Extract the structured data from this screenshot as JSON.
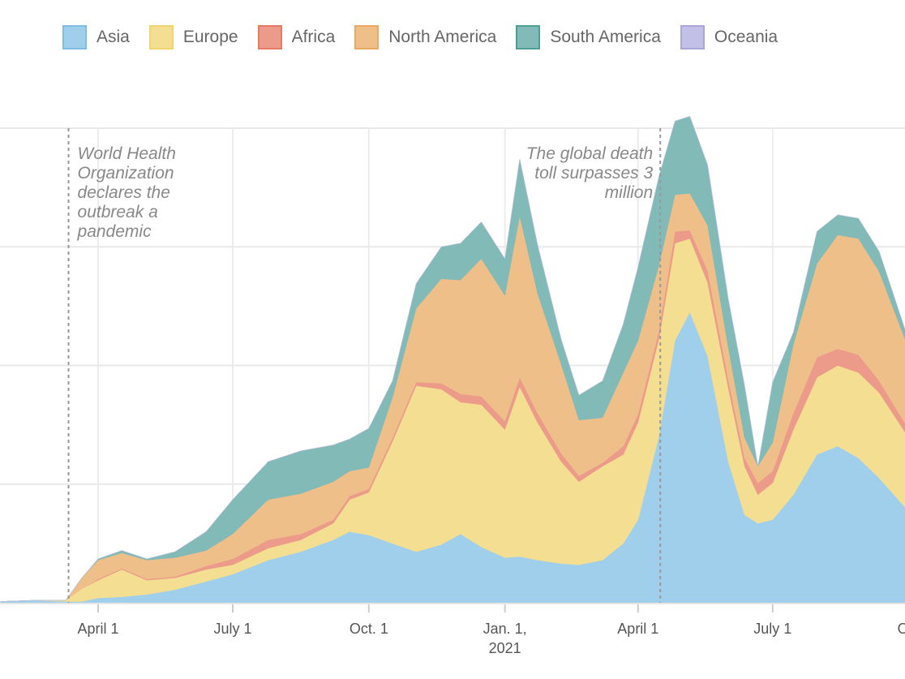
{
  "chart_data": {
    "type": "area",
    "stacked": true,
    "title": "",
    "xlabel": "",
    "ylabel": "",
    "y_units_note": "values in gridline intervals (y-axis labels not visible)",
    "ylim": [
      0,
      4
    ],
    "grid": true,
    "legend_position": "top",
    "x_ticks": [
      {
        "label": "April 1",
        "sub": "",
        "day": 91
      },
      {
        "label": "July 1",
        "sub": "",
        "day": 182
      },
      {
        "label": "Oct. 1",
        "sub": "",
        "day": 274
      },
      {
        "label": "Jan. 1,",
        "sub": "2021",
        "day": 366
      },
      {
        "label": "April 1",
        "sub": "",
        "day": 456
      },
      {
        "label": "July 1",
        "sub": "",
        "day": 547
      },
      {
        "label": "Oct",
        "sub": "",
        "day": 639
      }
    ],
    "x_day_range": [
      25,
      639
    ],
    "x_days": [
      25,
      47,
      69,
      80,
      91,
      107,
      124,
      143,
      164,
      182,
      206,
      228,
      250,
      261,
      274,
      290,
      306,
      323,
      336,
      350,
      366,
      376,
      388,
      404,
      416,
      432,
      446,
      456,
      470,
      481,
      491,
      503,
      517,
      528,
      537,
      547,
      561,
      577,
      591,
      605,
      619,
      639
    ],
    "series": [
      {
        "name": "Asia",
        "color": "#a0cfec",
        "stroke": "#7fbde3",
        "values": [
          0.01,
          0.02,
          0.01,
          0.01,
          0.04,
          0.05,
          0.07,
          0.11,
          0.18,
          0.24,
          0.36,
          0.43,
          0.53,
          0.6,
          0.57,
          0.5,
          0.43,
          0.49,
          0.58,
          0.47,
          0.38,
          0.39,
          0.36,
          0.33,
          0.32,
          0.36,
          0.5,
          0.7,
          1.4,
          2.21,
          2.45,
          2.08,
          1.19,
          0.74,
          0.67,
          0.7,
          0.91,
          1.25,
          1.32,
          1.22,
          1.05,
          0.77
        ]
      },
      {
        "name": "Europe",
        "color": "#f4de91",
        "stroke": "#f0d56f",
        "values": [
          0,
          0,
          0.01,
          0.11,
          0.15,
          0.23,
          0.12,
          0.1,
          0.1,
          0.08,
          0.1,
          0.1,
          0.14,
          0.27,
          0.36,
          0.86,
          1.4,
          1.31,
          1.11,
          1.2,
          1.08,
          1.43,
          1.16,
          0.86,
          0.7,
          0.79,
          0.75,
          0.82,
          0.82,
          0.82,
          0.62,
          0.62,
          0.62,
          0.41,
          0.24,
          0.31,
          0.55,
          0.65,
          0.68,
          0.72,
          0.72,
          0.62
        ]
      },
      {
        "name": "Africa",
        "color": "#ec9a8a",
        "stroke": "#e57b67",
        "values": [
          0,
          0,
          0,
          0,
          0.01,
          0.01,
          0.01,
          0.01,
          0.03,
          0.05,
          0.07,
          0.05,
          0.03,
          0.03,
          0.03,
          0.03,
          0.03,
          0.05,
          0.07,
          0.07,
          0.07,
          0.08,
          0.08,
          0.07,
          0.05,
          0.03,
          0.07,
          0.07,
          0.07,
          0.1,
          0.07,
          0.1,
          0.07,
          0.07,
          0.1,
          0.1,
          0.14,
          0.17,
          0.14,
          0.15,
          0.1,
          0.07
        ]
      },
      {
        "name": "North America",
        "color": "#efbf8a",
        "stroke": "#e9a963",
        "values": [
          0,
          0,
          0,
          0.09,
          0.16,
          0.13,
          0.16,
          0.16,
          0.13,
          0.21,
          0.34,
          0.34,
          0.32,
          0.21,
          0.18,
          0.34,
          0.62,
          0.88,
          0.96,
          1.16,
          1.06,
          1.36,
          1.01,
          0.75,
          0.47,
          0.38,
          0.62,
          0.62,
          0.55,
          0.31,
          0.31,
          0.38,
          0.27,
          0.17,
          0.14,
          0.24,
          0.58,
          0.79,
          0.96,
          0.98,
          0.92,
          0.68
        ]
      },
      {
        "name": "South America",
        "color": "#81bab6",
        "stroke": "#4f9d97",
        "values": [
          0,
          0,
          0,
          0,
          0.01,
          0.02,
          0.01,
          0.05,
          0.16,
          0.29,
          0.32,
          0.36,
          0.31,
          0.27,
          0.33,
          0.14,
          0.21,
          0.27,
          0.31,
          0.31,
          0.31,
          0.48,
          0.41,
          0.21,
          0.21,
          0.31,
          0.41,
          0.62,
          0.75,
          0.62,
          0.65,
          0.51,
          0.41,
          0.44,
          0.0,
          0.51,
          0.1,
          0.27,
          0.17,
          0.17,
          0.17,
          0.07
        ]
      },
      {
        "name": "Oceania",
        "color": "#c2c0e6",
        "stroke": "#a9a6da",
        "values": [
          0,
          0,
          0,
          0,
          0,
          0,
          0,
          0,
          0,
          0,
          0,
          0,
          0,
          0,
          0,
          0,
          0,
          0,
          0,
          0,
          0,
          0,
          0,
          0,
          0,
          0,
          0,
          0,
          0,
          0,
          0,
          0,
          0,
          0,
          0,
          0,
          0,
          0,
          0,
          0,
          0,
          0
        ]
      }
    ],
    "annotations": [
      {
        "day": 71,
        "lines": [
          "World Health",
          "Organization",
          "declares the",
          "outbreak a",
          "pandemic"
        ],
        "align": "left"
      },
      {
        "day": 471,
        "lines": [
          "The global death",
          "toll surpasses 3",
          "million"
        ],
        "align": "right"
      }
    ]
  }
}
